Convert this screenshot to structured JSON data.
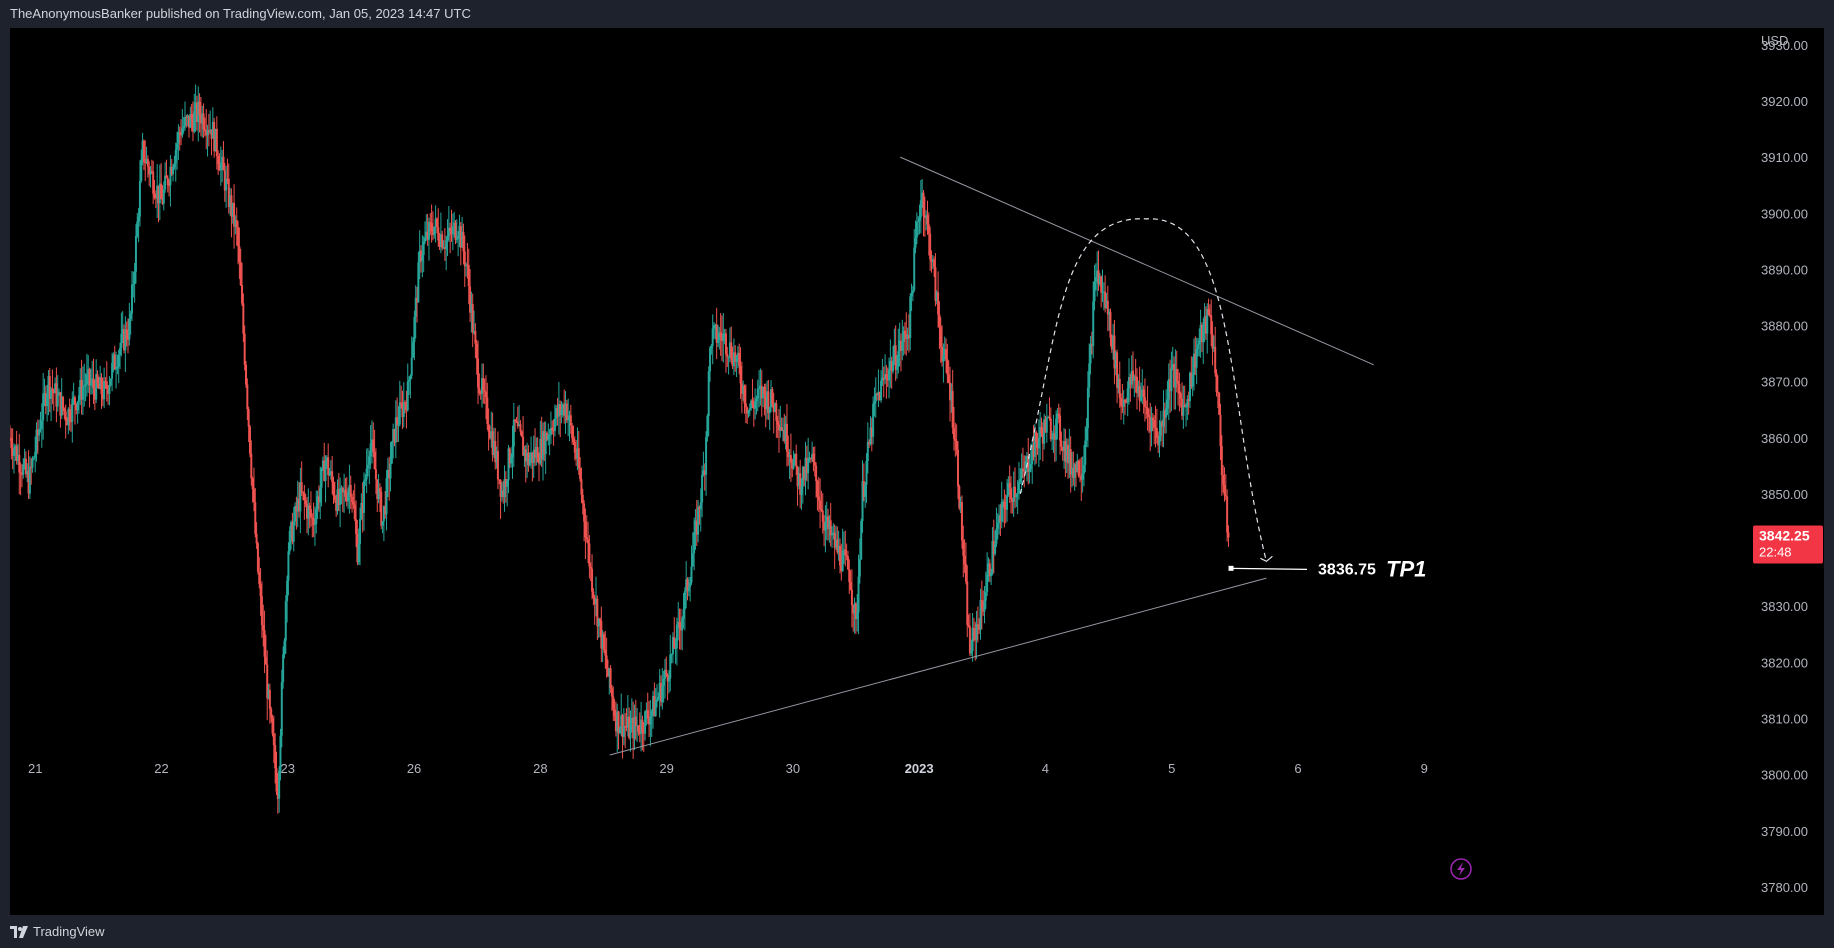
{
  "header": {
    "publisher": "TheAnonymousBanker",
    "published_on": "published on TradingView.com, Jan 05, 2023 14:47 UTC"
  },
  "footer": {
    "brand": "TradingView",
    "logo_icon": "tradingview-logo-icon"
  },
  "chart_data": {
    "type": "candlestick",
    "currency": "USD",
    "ylim": [
      3775,
      3933
    ],
    "y_ticks": [
      3930,
      3920,
      3910,
      3900,
      3890,
      3880,
      3870,
      3860,
      3850,
      3840,
      3830,
      3820,
      3810,
      3800,
      3790,
      3780
    ],
    "y_tick_labels": [
      "3930.00",
      "3920.00",
      "3910.00",
      "3900.00",
      "3890.00",
      "3880.00",
      "3870.00",
      "3860.00",
      "3850.00",
      "3840.00",
      "3830.00",
      "3820.00",
      "3810.00",
      "3800.00",
      "3790.00",
      "3780.00"
    ],
    "x_labels": [
      {
        "label": "21",
        "t": 0.2
      },
      {
        "label": "22",
        "t": 1.2
      },
      {
        "label": "23",
        "t": 2.2
      },
      {
        "label": "26",
        "t": 3.2
      },
      {
        "label": "28",
        "t": 4.2
      },
      {
        "label": "29",
        "t": 5.2
      },
      {
        "label": "30",
        "t": 6.2
      },
      {
        "label": "2023",
        "t": 7.2,
        "bold": true
      },
      {
        "label": "4",
        "t": 8.2
      },
      {
        "label": "5",
        "t": 9.2
      },
      {
        "label": "6",
        "t": 10.2
      },
      {
        "label": "9",
        "t": 11.2
      }
    ],
    "colors": {
      "up": "#26a69a",
      "down": "#ef5350",
      "background": "#000000",
      "trendline": "#9598a1",
      "price_tag": "#f23645"
    },
    "price_path": [
      [
        0.0,
        3860
      ],
      [
        0.15,
        3852
      ],
      [
        0.3,
        3870
      ],
      [
        0.45,
        3864
      ],
      [
        0.6,
        3870
      ],
      [
        0.75,
        3868
      ],
      [
        0.85,
        3875
      ],
      [
        0.95,
        3880
      ],
      [
        1.05,
        3911
      ],
      [
        1.2,
        3902
      ],
      [
        1.35,
        3915
      ],
      [
        1.5,
        3918
      ],
      [
        1.6,
        3915
      ],
      [
        1.7,
        3906
      ],
      [
        1.8,
        3896
      ],
      [
        1.85,
        3878
      ],
      [
        1.95,
        3840
      ],
      [
        2.05,
        3812
      ],
      [
        2.12,
        3797
      ],
      [
        2.2,
        3840
      ],
      [
        2.3,
        3850
      ],
      [
        2.4,
        3845
      ],
      [
        2.5,
        3856
      ],
      [
        2.6,
        3848
      ],
      [
        2.7,
        3852
      ],
      [
        2.75,
        3840
      ],
      [
        2.85,
        3860
      ],
      [
        2.95,
        3845
      ],
      [
        3.05,
        3862
      ],
      [
        3.15,
        3868
      ],
      [
        3.2,
        3880
      ],
      [
        3.25,
        3893
      ],
      [
        3.35,
        3898
      ],
      [
        3.45,
        3895
      ],
      [
        3.55,
        3898
      ],
      [
        3.62,
        3890
      ],
      [
        3.7,
        3872
      ],
      [
        3.8,
        3862
      ],
      [
        3.9,
        3850
      ],
      [
        4.0,
        3862
      ],
      [
        4.1,
        3856
      ],
      [
        4.2,
        3858
      ],
      [
        4.3,
        3863
      ],
      [
        4.4,
        3866
      ],
      [
        4.5,
        3855
      ],
      [
        4.6,
        3836
      ],
      [
        4.7,
        3822
      ],
      [
        4.8,
        3810
      ],
      [
        4.9,
        3808
      ],
      [
        5.0,
        3809
      ],
      [
        5.1,
        3812
      ],
      [
        5.2,
        3818
      ],
      [
        5.3,
        3826
      ],
      [
        5.4,
        3838
      ],
      [
        5.5,
        3855
      ],
      [
        5.55,
        3878
      ],
      [
        5.65,
        3878
      ],
      [
        5.75,
        3874
      ],
      [
        5.85,
        3865
      ],
      [
        5.95,
        3868
      ],
      [
        6.05,
        3866
      ],
      [
        6.15,
        3860
      ],
      [
        6.25,
        3852
      ],
      [
        6.35,
        3856
      ],
      [
        6.45,
        3845
      ],
      [
        6.55,
        3840
      ],
      [
        6.65,
        3836
      ],
      [
        6.7,
        3826
      ],
      [
        6.75,
        3850
      ],
      [
        6.85,
        3866
      ],
      [
        6.95,
        3872
      ],
      [
        7.05,
        3876
      ],
      [
        7.12,
        3880
      ],
      [
        7.18,
        3897
      ],
      [
        7.22,
        3904
      ],
      [
        7.3,
        3892
      ],
      [
        7.38,
        3876
      ],
      [
        7.45,
        3868
      ],
      [
        7.5,
        3856
      ],
      [
        7.6,
        3822
      ],
      [
        7.7,
        3830
      ],
      [
        7.8,
        3842
      ],
      [
        7.9,
        3850
      ],
      [
        8.0,
        3852
      ],
      [
        8.1,
        3858
      ],
      [
        8.2,
        3862
      ],
      [
        8.3,
        3862
      ],
      [
        8.4,
        3855
      ],
      [
        8.5,
        3855
      ],
      [
        8.6,
        3890
      ],
      [
        8.7,
        3882
      ],
      [
        8.8,
        3866
      ],
      [
        8.9,
        3871
      ],
      [
        9.0,
        3865
      ],
      [
        9.1,
        3860
      ],
      [
        9.2,
        3872
      ],
      [
        9.3,
        3865
      ],
      [
        9.4,
        3876
      ],
      [
        9.5,
        3882
      ],
      [
        9.55,
        3872
      ],
      [
        9.6,
        3854
      ],
      [
        9.65,
        3842
      ]
    ],
    "annotations": {
      "upper_trendline": [
        [
          7.05,
          3910
        ],
        [
          10.8,
          3873
        ]
      ],
      "lower_trendline": [
        [
          4.75,
          3803.5
        ],
        [
          9.95,
          3835
        ]
      ],
      "arc_path": [
        [
          8.0,
          3850
        ],
        [
          9.0,
          3899
        ],
        [
          9.95,
          3838
        ]
      ],
      "tp1": {
        "price": 3836.75,
        "label": "TP1",
        "price_label": "3836.75"
      }
    },
    "current_price": {
      "price": "3842.25",
      "countdown": "22:48",
      "value": 3842.25
    }
  }
}
